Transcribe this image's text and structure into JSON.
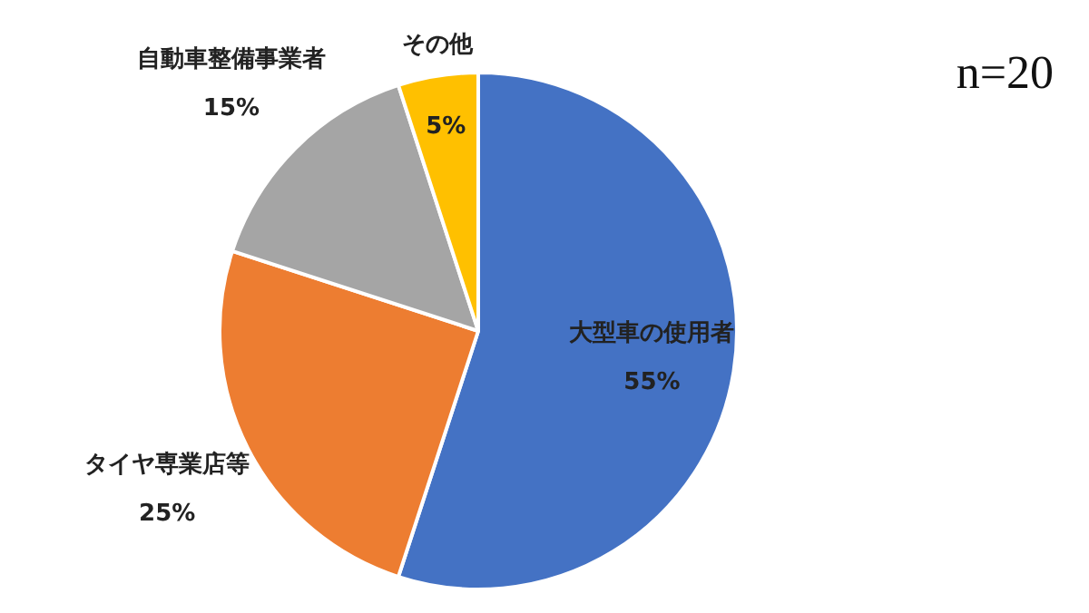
{
  "chart_data": {
    "type": "pie",
    "categories": [
      "大型車の使用者",
      "タイヤ専業店等",
      "自動車整備事業者",
      "その他"
    ],
    "values": [
      55,
      25,
      15,
      5
    ],
    "colors": [
      "#4472c4",
      "#ed7d31",
      "#a5a5a5",
      "#ffc000"
    ],
    "value_labels": [
      "55%",
      "25%",
      "15%",
      "5%"
    ],
    "annotations": [
      "n=20"
    ]
  }
}
